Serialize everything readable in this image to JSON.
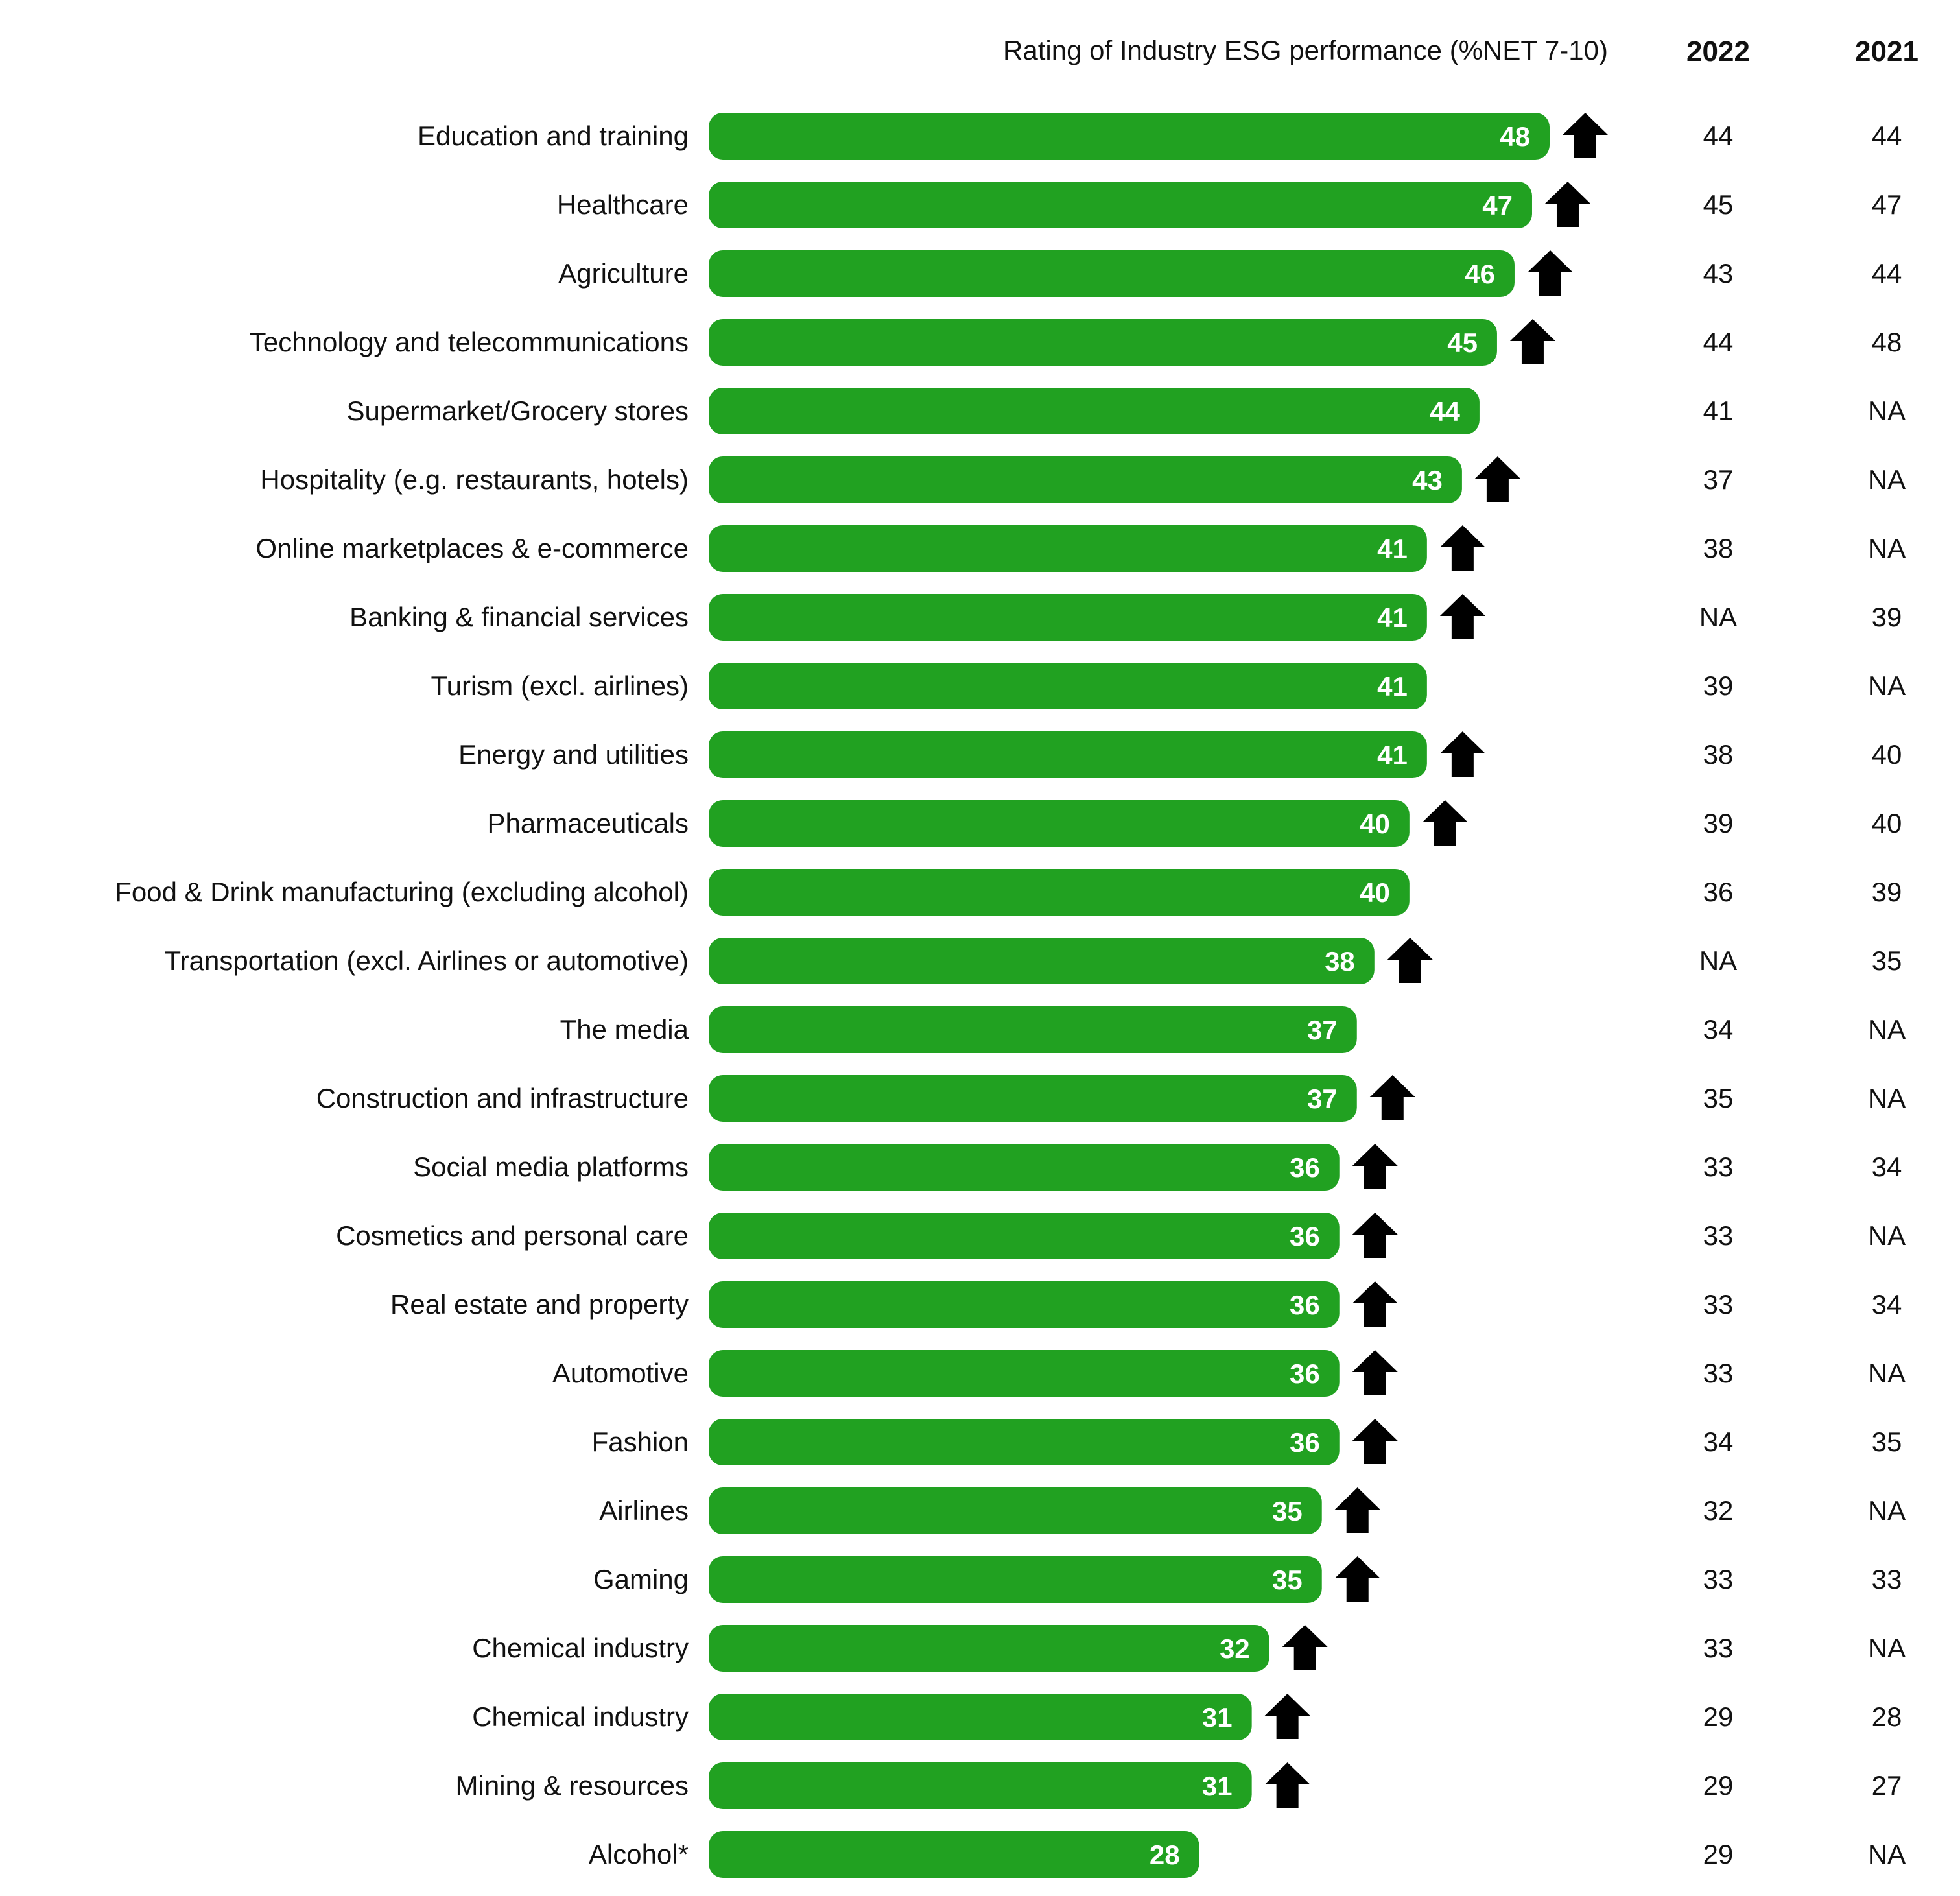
{
  "chart_data": {
    "type": "bar",
    "orientation": "horizontal",
    "title": "Rating of Industry ESG performance (%NET 7-10)",
    "xlim": [
      0,
      50
    ],
    "bar_color": "#21a121",
    "arrow_color": "#000000",
    "column_headers": [
      "2022",
      "2021"
    ],
    "categories": [
      "Education and training",
      "Healthcare",
      "Agriculture",
      "Technology and telecommunications",
      "Supermarket/Grocery stores",
      "Hospitality (e.g. restaurants, hotels)",
      "Online marketplaces & e-commerce",
      "Banking & financial services",
      "Turism (excl. airlines)",
      "Energy and utilities",
      "Pharmaceuticals",
      "Food & Drink manufacturing (excluding alcohol)",
      "Transportation (excl. Airlines or automotive)",
      "The media",
      "Construction and infrastructure",
      "Social media platforms",
      "Cosmetics and personal care",
      "Real estate and property",
      "Automotive",
      "Fashion",
      "Airlines",
      "Gaming",
      "Chemical industry",
      "Chemical industry",
      "Mining & resources",
      "Alcohol*"
    ],
    "values": [
      48,
      47,
      46,
      45,
      44,
      43,
      41,
      41,
      41,
      41,
      40,
      40,
      38,
      37,
      37,
      36,
      36,
      36,
      36,
      36,
      35,
      35,
      32,
      31,
      31,
      28
    ],
    "up_arrow": [
      true,
      true,
      true,
      true,
      false,
      true,
      true,
      true,
      false,
      true,
      true,
      false,
      true,
      false,
      true,
      true,
      true,
      true,
      true,
      true,
      true,
      true,
      true,
      true,
      true,
      false
    ],
    "values_2022": [
      "44",
      "45",
      "43",
      "44",
      "41",
      "37",
      "38",
      "NA",
      "39",
      "38",
      "39",
      "36",
      "NA",
      "34",
      "35",
      "33",
      "33",
      "33",
      "33",
      "34",
      "32",
      "33",
      "33",
      "29",
      "29",
      "29"
    ],
    "values_2021": [
      "44",
      "47",
      "44",
      "48",
      "NA",
      "NA",
      "NA",
      "39",
      "NA",
      "40",
      "40",
      "39",
      "35",
      "NA",
      "NA",
      "34",
      "NA",
      "34",
      "NA",
      "35",
      "NA",
      "33",
      "NA",
      "28",
      "27",
      "NA"
    ]
  }
}
